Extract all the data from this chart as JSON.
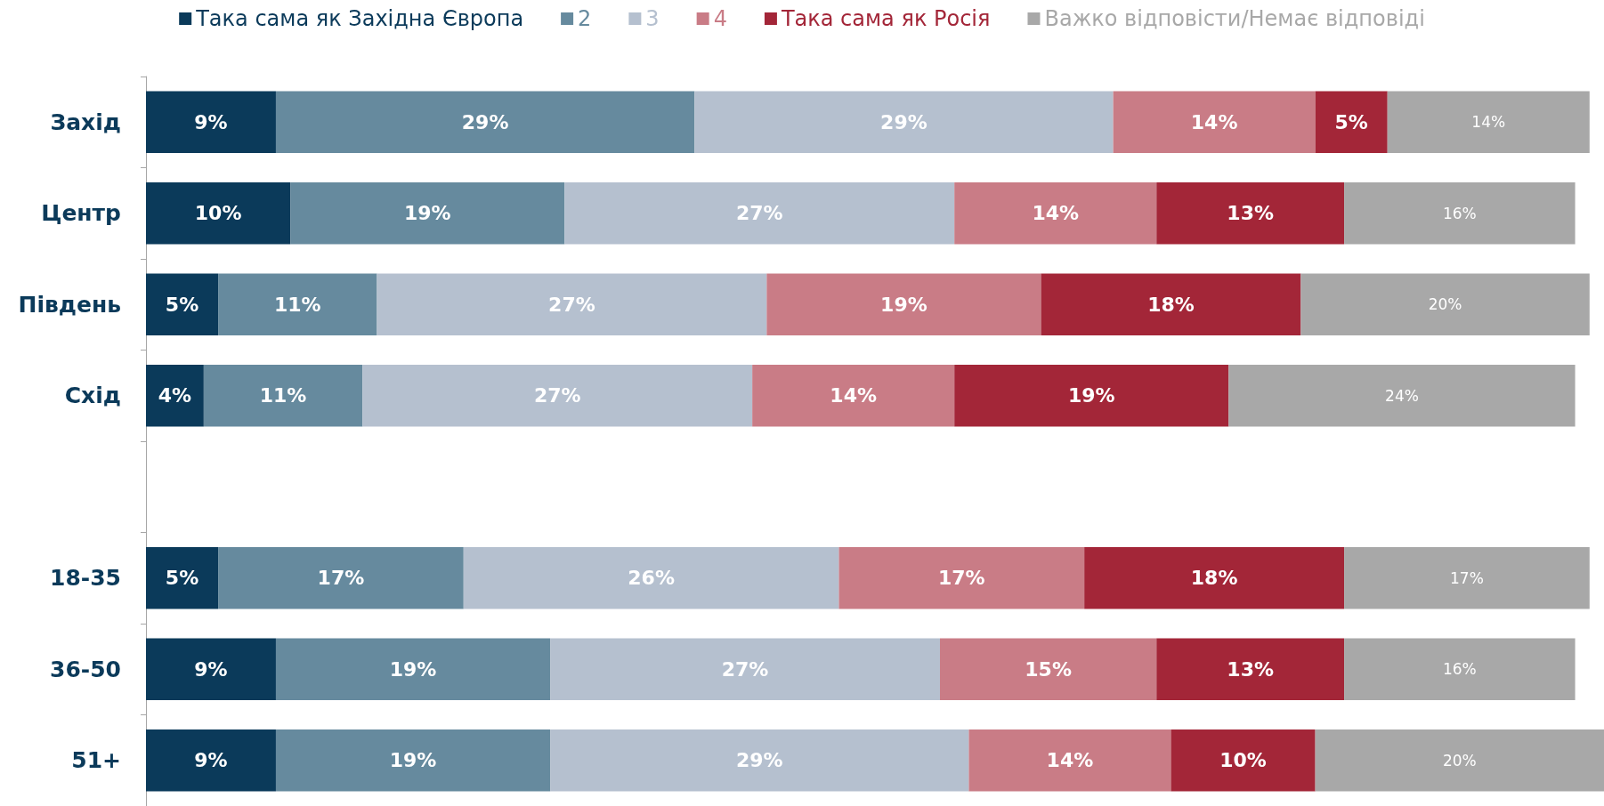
{
  "chart_data": {
    "type": "bar",
    "orientation": "horizontal",
    "stacked": true,
    "legend": "top",
    "grid": false,
    "categories": [
      "Захід",
      "Центр",
      "Південь",
      "Схід",
      null,
      "18-35",
      "36-50",
      "51+"
    ],
    "series": [
      {
        "name": "Така сама як Західна Європа",
        "color": "#0b3a5a",
        "values": [
          9,
          10,
          5,
          4,
          null,
          5,
          9,
          9
        ],
        "value_labels": [
          "9%",
          "10%",
          "5%",
          "4%",
          null,
          "5%",
          "9%",
          "9%"
        ]
      },
      {
        "name": "2",
        "color": "#668a9e",
        "values": [
          29,
          19,
          11,
          11,
          null,
          17,
          19,
          19
        ],
        "value_labels": [
          "29%",
          "19%",
          "11%",
          "11%",
          null,
          "17%",
          "19%",
          "19%"
        ]
      },
      {
        "name": "3",
        "color": "#b5c0cf",
        "values": [
          29,
          27,
          27,
          27,
          null,
          26,
          27,
          29
        ],
        "value_labels": [
          "29%",
          "27%",
          "27%",
          "27%",
          null,
          "26%",
          "27%",
          "29%"
        ]
      },
      {
        "name": "4",
        "color": "#c97c86",
        "values": [
          14,
          14,
          19,
          14,
          null,
          17,
          15,
          14
        ],
        "value_labels": [
          "14%",
          "14%",
          "19%",
          "14%",
          null,
          "17%",
          "15%",
          "14%"
        ]
      },
      {
        "name": "Така сама як Росія",
        "color": "#a32638",
        "values": [
          5,
          13,
          18,
          19,
          null,
          18,
          13,
          10
        ],
        "value_labels": [
          "5%",
          "13%",
          "18%",
          "19%",
          null,
          "18%",
          "13%",
          "10%"
        ]
      },
      {
        "name": "Важко відповісти/Немає відповіді",
        "color": "#a8a8a8",
        "values": [
          14,
          16,
          20,
          24,
          null,
          17,
          16,
          20
        ],
        "value_labels": [
          "14%",
          "16%",
          "20%",
          "24%",
          null,
          "17%",
          "16%",
          "20%"
        ]
      }
    ]
  }
}
